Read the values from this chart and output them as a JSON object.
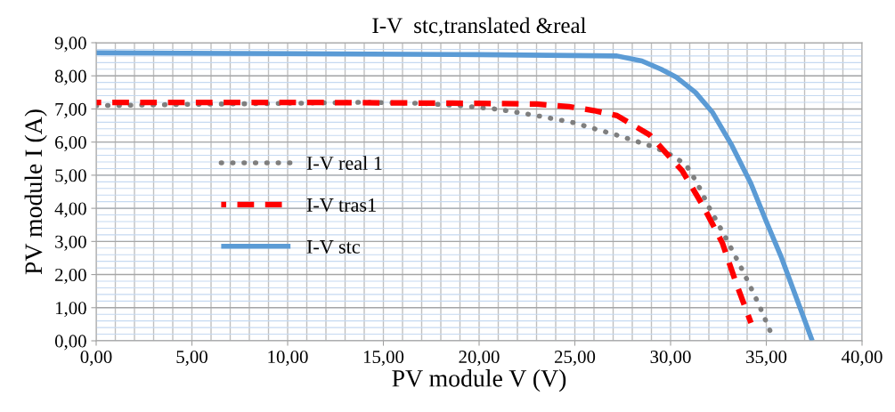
{
  "chart_data": {
    "type": "line",
    "title": "I-V  stc,translated &real",
    "xlabel": "PV module V (V)",
    "ylabel": "PV module I (A)",
    "xlim": [
      0,
      40
    ],
    "ylim": [
      0,
      9
    ],
    "xticks": [
      {
        "value": 0,
        "label": "0,00"
      },
      {
        "value": 5,
        "label": "5,00"
      },
      {
        "value": 10,
        "label": "10,00"
      },
      {
        "value": 15,
        "label": "15,00"
      },
      {
        "value": 20,
        "label": "20,00"
      },
      {
        "value": 25,
        "label": "25,00"
      },
      {
        "value": 30,
        "label": "30,00"
      },
      {
        "value": 35,
        "label": "35,00"
      },
      {
        "value": 40,
        "label": "40,00"
      }
    ],
    "yticks": [
      {
        "value": 0,
        "label": "0,00"
      },
      {
        "value": 1,
        "label": "1,00"
      },
      {
        "value": 2,
        "label": "2,00"
      },
      {
        "value": 3,
        "label": "3,00"
      },
      {
        "value": 4,
        "label": "4,00"
      },
      {
        "value": 5,
        "label": "5,00"
      },
      {
        "value": 6,
        "label": "6,00"
      },
      {
        "value": 7,
        "label": "7,00"
      },
      {
        "value": 8,
        "label": "8,00"
      },
      {
        "value": 9,
        "label": "9,00"
      }
    ],
    "grid": true,
    "legend": "left",
    "marker": "none",
    "series": [
      {
        "name": "I-V real 1",
        "color": "#7f7f7f",
        "line_style": "dotted",
        "x": [
          0,
          5,
          10,
          14,
          17,
          19,
          21.0,
          23,
          24.9,
          27.2,
          29.1,
          30.0,
          30.8,
          31.4,
          32.0,
          32.9,
          33.8,
          34.6,
          35.3
        ],
        "values": [
          7.1,
          7.14,
          7.17,
          7.2,
          7.17,
          7.1,
          6.99,
          6.8,
          6.59,
          6.21,
          5.86,
          5.62,
          5.32,
          4.75,
          4.04,
          3.09,
          2.08,
          1.11,
          0.16
        ]
      },
      {
        "name": "I-V tras1",
        "color": "#ff0000",
        "line_style": "dashed",
        "x": [
          0,
          10,
          20,
          23,
          24.7,
          26,
          27.2,
          28.9,
          30.6,
          31.7,
          32.7,
          33.4,
          34.2
        ],
        "values": [
          7.2,
          7.2,
          7.17,
          7.15,
          7.07,
          6.95,
          6.8,
          6.22,
          5.14,
          4.07,
          2.96,
          1.78,
          0.54
        ]
      },
      {
        "name": "I-V stc",
        "color": "#5b9bd5",
        "line_style": "solid",
        "x": [
          0,
          10,
          20,
          27.2,
          28.5,
          29.5,
          30.3,
          31.3,
          32.2,
          33.2,
          34.2,
          35.0,
          35.8,
          36.6,
          37.4
        ],
        "values": [
          8.7,
          8.67,
          8.64,
          8.6,
          8.45,
          8.2,
          7.96,
          7.5,
          6.89,
          5.9,
          4.74,
          3.6,
          2.5,
          1.25,
          0
        ]
      }
    ]
  }
}
